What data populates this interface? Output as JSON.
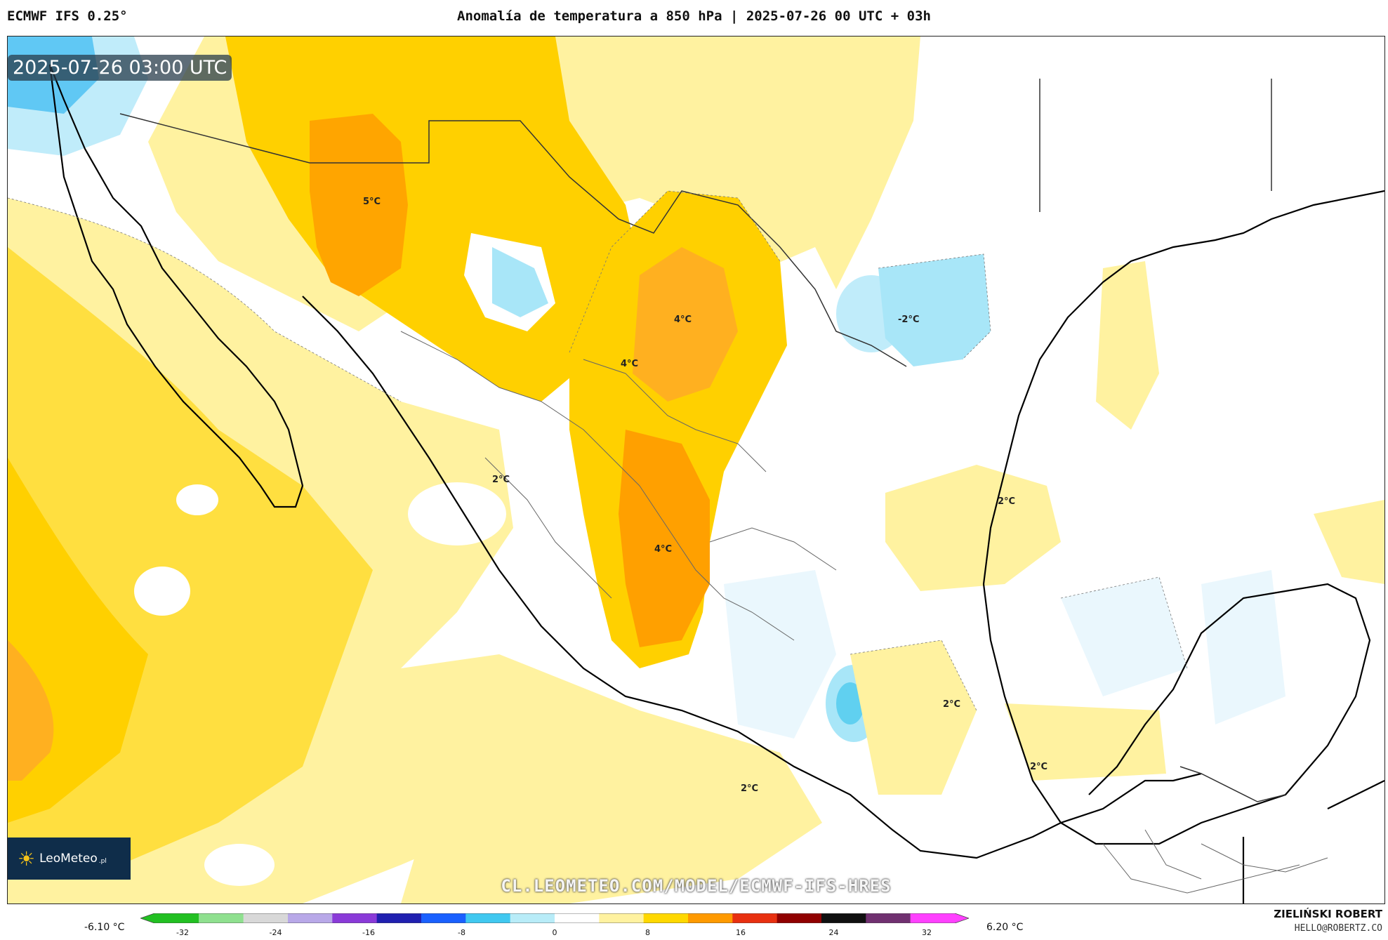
{
  "header": {
    "model": "ECMWF IFS 0.25°",
    "title": "Anomalía de temperatura a 850 hPa | 2025-07-26 00 UTC + 03h"
  },
  "map": {
    "timestamp": "2025-07-26 03:00 UTC",
    "labels": {
      "sonora_5": "5°C",
      "coahuila_4": "4°C",
      "durango_4": "4°C",
      "central_4": "4°C",
      "sinaloa_2": "2°C",
      "texas_minus2": "-2°C",
      "gulf_2": "2°C",
      "veracruz_2": "2°C",
      "guerrero_2": "2°C",
      "chiapas_2": "2°C"
    },
    "watermark_url": "CL.LEOMETEO.COM/MODEL/ECMWF-IFS-HRES"
  },
  "logo": {
    "name": "LeoMeteo",
    "suffix": ".pl"
  },
  "colorbar": {
    "min_label": "-6.10 °C",
    "max_label": "6.20 °C",
    "ticks": [
      "-32",
      "-24",
      "-16",
      "-8",
      "0",
      "8",
      "16",
      "24",
      "32"
    ],
    "colors": [
      "#22c022",
      "#8fe08f",
      "#d8d8d8",
      "#b8a8e8",
      "#8a3ad8",
      "#2020b0",
      "#1a60ff",
      "#40c8f0",
      "#b8ecf8",
      "#ffffff",
      "#fff2a0",
      "#ffd800",
      "#ff9a00",
      "#e83010",
      "#900000",
      "#101010",
      "#703070",
      "#ff40ff"
    ]
  },
  "footer": {
    "author": "ZIELIŃSKI ROBERT",
    "email": "HELLO@ROBERTZ.CO"
  }
}
